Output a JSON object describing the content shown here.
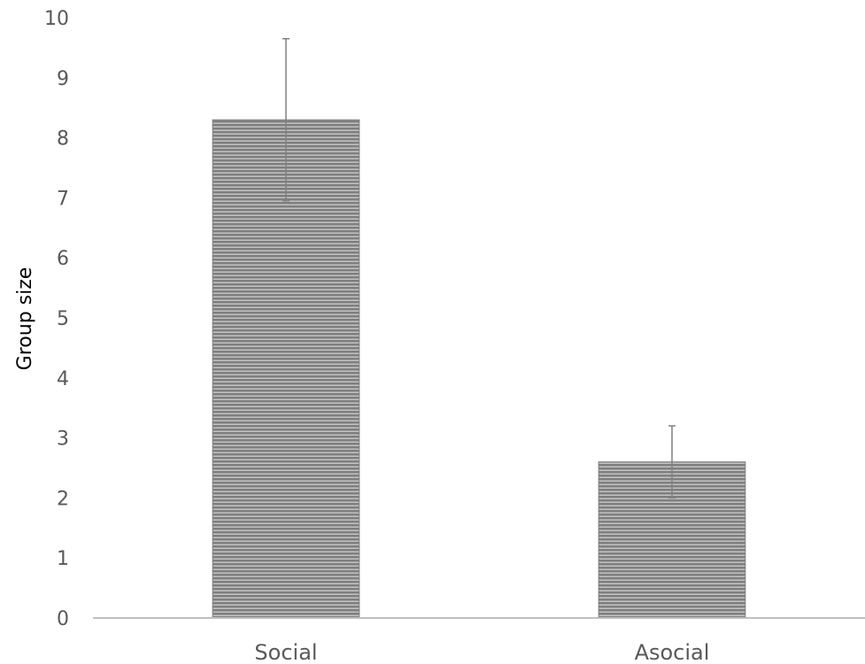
{
  "chart_data": {
    "type": "bar",
    "categories": [
      "Social",
      "Asocial"
    ],
    "series": [
      {
        "values": [
          8.3,
          2.6
        ],
        "error_upper": [
          9.65,
          3.2
        ],
        "error_lower": [
          6.95,
          2.0
        ]
      }
    ],
    "title": "",
    "xlabel": "",
    "ylabel": "Group size",
    "ylim": [
      0,
      10
    ],
    "yticks": [
      "0",
      "1",
      "2",
      "3",
      "4",
      "5",
      "6",
      "7",
      "8",
      "9",
      "10"
    ],
    "grid": false,
    "legend": "none",
    "bar_color": "#7f7f7f",
    "stripe_color": "#ffffff",
    "error_bar_color": "#808080",
    "axis_color": "#bfbfbf"
  }
}
